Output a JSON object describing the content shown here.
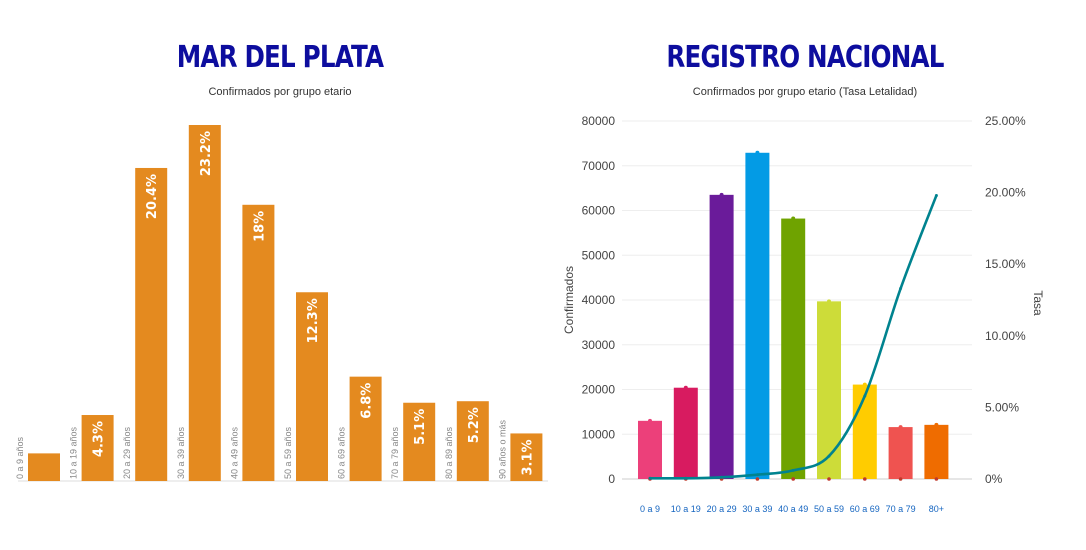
{
  "chart_data": [
    {
      "type": "bar",
      "title": "MAR DEL PLATA",
      "subtitle": "Confirmados por grupo etario",
      "categories": [
        "0 a 9 años",
        "10 a 19 años",
        "20 a 29 años",
        "30 a 39 años",
        "40 a 49 años",
        "50 a 59 años",
        "60 a 69 años",
        "70 a 79 años",
        "80 a 89 años",
        "90 años o más"
      ],
      "values": [
        1.8,
        4.3,
        20.4,
        23.2,
        18,
        12.3,
        6.8,
        5.1,
        5.2,
        3.1
      ],
      "value_labels": [
        "",
        "4.3%",
        "20.4%",
        "23.2%",
        "18%",
        "12.3%",
        "6.8%",
        "5.1%",
        "5.2%",
        "3.1%"
      ],
      "ylim": [
        0,
        23.2
      ],
      "bar_color": "#e48a1f"
    },
    {
      "type": "bar",
      "title": "REGISTRO NACIONAL",
      "subtitle": "Confirmados por grupo etario (Tasa Letalidad)",
      "categories": [
        "0 a 9",
        "10 a 19",
        "20 a 29",
        "30 a 39",
        "40 a 49",
        "50 a 59",
        "60 a 69",
        "70 a 79",
        "80+"
      ],
      "values": [
        13000,
        20400,
        63500,
        72900,
        58200,
        39700,
        21100,
        11600,
        12100
      ],
      "colors": [
        "#ec407a",
        "#d81b60",
        "#6a1b9a",
        "#039be5",
        "#6fa300",
        "#cddc39",
        "#ffcc00",
        "#ef5350",
        "#ef6c00"
      ],
      "ylabel": "Confirmados",
      "ylim": [
        0,
        80000
      ],
      "y_ticks": [
        "0",
        "10000",
        "20000",
        "30000",
        "40000",
        "50000",
        "60000",
        "70000",
        "80000"
      ],
      "y2label": "Tasa",
      "y2lim": [
        0,
        25
      ],
      "y2_ticks": [
        "0%",
        "5.00%",
        "10.00%",
        "15.00%",
        "20.00%",
        "25.00%"
      ],
      "line_series": {
        "values": [
          0.05,
          0.05,
          0.12,
          0.3,
          0.6,
          1.6,
          5.8,
          13.3,
          19.8
        ],
        "color": "#00838f"
      },
      "grid": true
    }
  ]
}
